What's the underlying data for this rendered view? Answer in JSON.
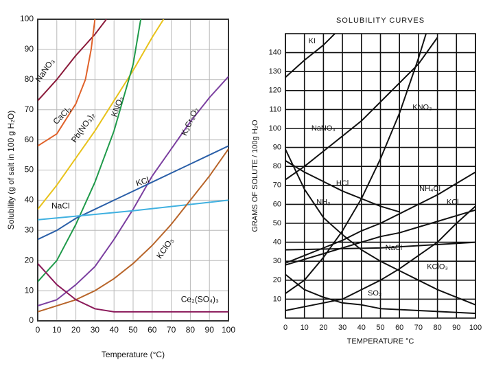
{
  "chart_data": [
    {
      "type": "line",
      "x_label": "Temperature (°C)",
      "y_label": "Solubility (g of salt in 100 g H₂O)",
      "xlim": [
        0,
        100
      ],
      "xticks": [
        0,
        10,
        20,
        30,
        40,
        50,
        60,
        70,
        80,
        90,
        100
      ],
      "ylim": [
        0,
        100
      ],
      "yticks": [
        0,
        10,
        20,
        30,
        40,
        50,
        60,
        70,
        80,
        90,
        100
      ],
      "grid": true,
      "series": [
        {
          "name": "NaNO₃",
          "color": "#8b1a3a",
          "x": [
            0,
            10,
            20,
            30,
            36
          ],
          "values": [
            73,
            80,
            88,
            95,
            100
          ]
        },
        {
          "name": "CaCl₂",
          "color": "#e0622a",
          "x": [
            0,
            10,
            20,
            25,
            28,
            30
          ],
          "values": [
            58,
            62,
            72,
            80,
            90,
            100
          ]
        },
        {
          "name": "Pb(NO₃)₂",
          "color": "#e8c21a",
          "x": [
            0,
            10,
            20,
            30,
            40,
            50,
            60,
            66
          ],
          "values": [
            37,
            45,
            54,
            63,
            73,
            83,
            94,
            100
          ]
        },
        {
          "name": "KNO₃",
          "color": "#1f9a4a",
          "x": [
            0,
            10,
            20,
            30,
            40,
            50,
            54
          ],
          "values": [
            13,
            20,
            32,
            46,
            63,
            85,
            100
          ]
        },
        {
          "name": "K₂Cr₂O₇",
          "color": "#7b3fa0",
          "x": [
            0,
            10,
            20,
            30,
            40,
            50,
            60,
            70,
            80,
            90,
            100
          ],
          "values": [
            5,
            7,
            12,
            18,
            27,
            37,
            48,
            57,
            66,
            74,
            81
          ]
        },
        {
          "name": "KCl",
          "color": "#2a5fa8",
          "x": [
            0,
            10,
            20,
            30,
            40,
            50,
            60,
            70,
            80,
            90,
            100
          ],
          "values": [
            27,
            30,
            34,
            37,
            40,
            43,
            46,
            49,
            52,
            55,
            58
          ]
        },
        {
          "name": "NaCl",
          "color": "#3fb0e0",
          "x": [
            0,
            50,
            100
          ],
          "values": [
            33.5,
            36.5,
            40
          ]
        },
        {
          "name": "KClO₃",
          "color": "#b8652a",
          "x": [
            0,
            10,
            20,
            30,
            40,
            50,
            60,
            70,
            80,
            90,
            100
          ],
          "values": [
            3,
            5,
            7,
            10,
            14,
            19,
            25,
            32,
            40,
            48,
            57
          ]
        },
        {
          "name": "Ce₂(SO₄)₃",
          "color": "#8b1a5a",
          "x": [
            0,
            10,
            20,
            30,
            40,
            100
          ],
          "values": [
            19,
            12,
            7,
            4,
            3,
            3
          ]
        }
      ]
    },
    {
      "type": "line",
      "title": "SOLUBILITY CURVES",
      "x_label": "TEMPERATURE °C",
      "y_label": "GRAMS OF SOLUTE / 100g H₂O",
      "xlim": [
        0,
        100
      ],
      "xticks": [
        0,
        10,
        20,
        30,
        40,
        50,
        60,
        70,
        80,
        90,
        100
      ],
      "ylim": [
        0,
        150
      ],
      "yticks": [
        10,
        20,
        30,
        40,
        50,
        60,
        70,
        80,
        90,
        100,
        110,
        120,
        130,
        140
      ],
      "grid": true,
      "series": [
        {
          "name": "KI",
          "color": "#111111",
          "x": [
            0,
            10,
            20,
            26
          ],
          "values": [
            127,
            136,
            144,
            150
          ]
        },
        {
          "name": "NaNO₃",
          "color": "#111111",
          "x": [
            0,
            10,
            20,
            30,
            40,
            50,
            60,
            70,
            80
          ],
          "values": [
            73,
            80,
            88,
            96,
            104,
            114,
            124,
            134,
            148
          ]
        },
        {
          "name": "KNO₃",
          "color": "#111111",
          "x": [
            0,
            10,
            20,
            30,
            40,
            50,
            60,
            70,
            74
          ],
          "values": [
            13,
            20,
            32,
            46,
            63,
            84,
            108,
            137,
            150
          ]
        },
        {
          "name": "HCl",
          "color": "#111111",
          "x": [
            0,
            10,
            20,
            30,
            40,
            50,
            60
          ],
          "values": [
            83,
            77,
            72,
            67,
            63,
            59,
            56
          ]
        },
        {
          "name": "NH₄Cl",
          "color": "#111111",
          "x": [
            0,
            10,
            20,
            30,
            40,
            50,
            60,
            70,
            80,
            90,
            100
          ],
          "values": [
            29,
            33,
            37,
            41,
            46,
            50,
            55,
            60,
            65,
            71,
            77
          ]
        },
        {
          "name": "KCl",
          "color": "#111111",
          "x": [
            0,
            10,
            20,
            30,
            40,
            50,
            60,
            70,
            80,
            90,
            100
          ],
          "values": [
            28,
            31,
            34,
            37,
            40,
            43,
            45,
            48,
            51,
            54,
            57
          ]
        },
        {
          "name": "NH₃",
          "color": "#111111",
          "x": [
            0,
            10,
            20,
            30,
            40,
            50,
            60,
            70,
            80,
            90,
            100
          ],
          "values": [
            89,
            68,
            53,
            44,
            36,
            30,
            25,
            20,
            15,
            11,
            7
          ]
        },
        {
          "name": "NaCl",
          "color": "#111111",
          "x": [
            0,
            50,
            100
          ],
          "values": [
            36,
            37,
            40
          ]
        },
        {
          "name": "KClO₃",
          "color": "#111111",
          "x": [
            0,
            10,
            20,
            30,
            40,
            50,
            60,
            70,
            80,
            90,
            100
          ],
          "values": [
            4,
            6,
            8,
            10,
            15,
            20,
            26,
            33,
            40,
            50,
            59
          ]
        },
        {
          "name": "SO₂",
          "color": "#111111",
          "x": [
            0,
            10,
            20,
            30,
            40,
            50,
            60,
            70,
            80,
            90,
            100
          ],
          "values": [
            23,
            15,
            11,
            8,
            7,
            5,
            4.5,
            4,
            3.5,
            3,
            2.5
          ]
        }
      ]
    }
  ]
}
